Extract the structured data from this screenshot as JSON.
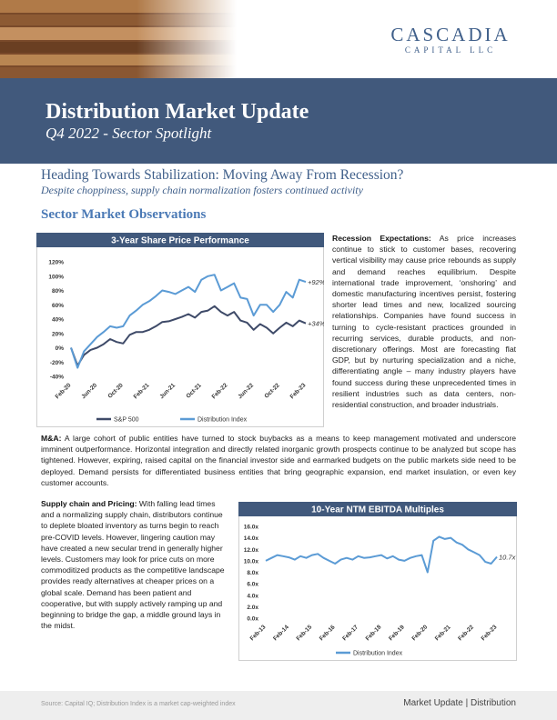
{
  "logo": {
    "name": "CASCADIA",
    "sub": "CAPITAL LLC"
  },
  "banner": {
    "title": "Distribution Market Update",
    "subtitle": "Q4 2022 - Sector Spotlight"
  },
  "heading": "Heading Towards Stabilization:  Moving Away From Recession?",
  "subheading": "Despite choppiness, supply chain normalization fosters continued activity",
  "section_title": "Sector Market Observations",
  "paragraphs": [
    {
      "lead": "Recession Expectations:",
      "text": " As price increases continue to stick to customer bases, recovering vertical visibility may cause price rebounds as supply and demand reaches equilibrium. Despite international trade improvement, ‘onshoring’ and domestic manufacturing incentives persist, fostering shorter lead times and new, localized sourcing relationships. Companies have found success in turning to cycle-resistant practices grounded in recurring services, durable products, and non-discretionary offerings. Most are forecasting flat GDP, but by nurturing specialization and a niche, differentiating angle – many industry players have found success during these unprecedented times in resilient industries such as data centers, non-residential construction, and broader industrials."
    },
    {
      "lead": "M&A:",
      "text": " A large cohort of public entities have turned to stock buybacks as a means to keep management motivated and underscore imminent outperformance. Horizontal integration and directly related inorganic growth prospects continue to be analyzed but scope has tightened. However, expiring, raised capital on the financial investor side and earmarked budgets on the public markets side need to be deployed. Demand persists for differentiated business entities that bring geographic expansion, end market insulation, or even key customer accounts."
    },
    {
      "lead": "Supply chain and Pricing:",
      "text": " With falling lead times and a normalizing supply chain, distributors continue to deplete bloated inventory as turns begin to reach pre-COVID levels. However, lingering caution may have created a new secular trend in generally higher levels. Customers may look for price cuts on more commoditized products as the competitive landscape provides ready alternatives at cheaper prices on a global scale. Demand has been patient and cooperative, but with supply actively ramping up and beginning to bridge the gap, a middle ground lays in the midst."
    }
  ],
  "chart_data": [
    {
      "type": "line",
      "title": "3-Year Share Price Performance",
      "categories": [
        "Feb-20",
        null,
        null,
        null,
        "Jun-20",
        null,
        null,
        null,
        "Oct-20",
        null,
        null,
        null,
        "Feb-21",
        null,
        null,
        null,
        "Jun-21",
        null,
        null,
        null,
        "Oct-21",
        null,
        null,
        null,
        "Feb-22",
        null,
        null,
        null,
        "Jun-22",
        null,
        null,
        null,
        "Oct-22",
        null,
        null,
        null,
        "Feb-23"
      ],
      "series": [
        {
          "name": "S&P 500",
          "color": "#3e4a68",
          "values": [
            0,
            -25,
            -10,
            -3,
            0,
            5,
            12,
            8,
            6,
            18,
            22,
            22,
            25,
            30,
            36,
            37,
            40,
            43,
            47,
            42,
            50,
            52,
            58,
            50,
            45,
            50,
            38,
            35,
            25,
            33,
            28,
            20,
            28,
            35,
            30,
            38,
            34
          ]
        },
        {
          "name": "Distribution Index",
          "color": "#5b9bd5",
          "values": [
            0,
            -28,
            -5,
            5,
            15,
            22,
            30,
            28,
            30,
            45,
            52,
            60,
            65,
            72,
            80,
            78,
            75,
            80,
            85,
            78,
            95,
            100,
            102,
            80,
            85,
            90,
            70,
            68,
            45,
            60,
            60,
            50,
            60,
            78,
            70,
            95,
            92
          ]
        }
      ],
      "ylim": [
        -40,
        120
      ],
      "yticks": [
        {
          "value": -40,
          "label": "-40%"
        },
        {
          "value": -20,
          "label": "-20%"
        },
        {
          "value": 0,
          "label": "0%"
        },
        {
          "value": 20,
          "label": "20%"
        },
        {
          "value": 40,
          "label": "40%"
        },
        {
          "value": 60,
          "label": "60%"
        },
        {
          "value": 80,
          "label": "80%"
        },
        {
          "value": 100,
          "label": "100%"
        },
        {
          "value": 120,
          "label": "120%"
        }
      ],
      "annotations": [
        {
          "text": "+92%",
          "value": 92
        },
        {
          "text": "+34%",
          "value": 34
        }
      ],
      "legend": "bottom"
    },
    {
      "type": "line",
      "title": "10-Year NTM EBITDA Multiples",
      "categories": [
        "Feb-13",
        null,
        null,
        null,
        "Feb-14",
        null,
        null,
        null,
        "Feb-15",
        null,
        null,
        null,
        "Feb-16",
        null,
        null,
        null,
        "Feb-17",
        null,
        null,
        null,
        "Feb-18",
        null,
        null,
        null,
        "Feb-19",
        null,
        null,
        null,
        "Feb-20",
        null,
        null,
        null,
        "Feb-21",
        null,
        null,
        null,
        "Feb-22",
        null,
        null,
        null,
        "Feb-23"
      ],
      "series": [
        {
          "name": "Distribution Index",
          "color": "#5b9bd5",
          "values": [
            10.0,
            10.5,
            11.0,
            10.8,
            10.6,
            10.2,
            10.8,
            10.5,
            11.0,
            11.2,
            10.5,
            10.0,
            9.5,
            10.2,
            10.5,
            10.2,
            10.8,
            10.5,
            10.6,
            10.8,
            11.0,
            10.4,
            10.8,
            10.2,
            10.0,
            10.5,
            10.8,
            11.0,
            8.0,
            13.5,
            14.2,
            13.8,
            14.0,
            13.2,
            12.8,
            12.0,
            11.5,
            11.0,
            9.8,
            9.5,
            10.7
          ]
        }
      ],
      "ylim": [
        0,
        16
      ],
      "yticks": [
        {
          "value": 0,
          "label": "0.0x"
        },
        {
          "value": 2,
          "label": "2.0x"
        },
        {
          "value": 4,
          "label": "4.0x"
        },
        {
          "value": 6,
          "label": "6.0x"
        },
        {
          "value": 8,
          "label": "8.0x"
        },
        {
          "value": 10,
          "label": "10.0x"
        },
        {
          "value": 12,
          "label": "12.0x"
        },
        {
          "value": 14,
          "label": "14.0x"
        },
        {
          "value": 16,
          "label": "16.0x"
        }
      ],
      "annotations": [
        {
          "text": "10.7x",
          "value": 10.7
        }
      ],
      "legend": "bottom"
    }
  ],
  "footer": {
    "source": "Source: Capital IQ; Distribution Index is a market cap-weighted index",
    "right": "Market Update | Distribution"
  }
}
